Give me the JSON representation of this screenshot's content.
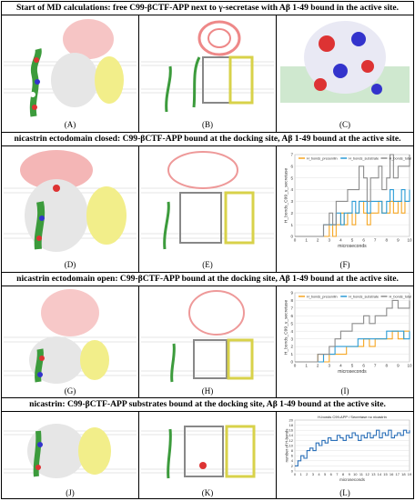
{
  "rows": [
    {
      "title": "Start of MD calculations: free C99-βCTF-APP next to γ-secretase with Aβ 1-49 bound in the active site.",
      "labels": [
        "(A)",
        "(B)",
        "(C)"
      ]
    },
    {
      "title": "nicastrin ectodomain closed: C99-βCTF-APP bound at the docking site, Aβ 1-49 bound at the active site.",
      "labels": [
        "(D)",
        "(E)",
        "(F)"
      ]
    },
    {
      "title": "nicastrin ectodomain open: C99-βCTF-APP bound at the docking site, Aβ 1-49 bound at the active site.",
      "labels": [
        "(G)",
        "(H)",
        "(I)"
      ]
    },
    {
      "title": "nicastrin: C99-βCTF-APP substrates bound at the docking site, Aβ 1-49 bound at the active site.",
      "labels": [
        "(J)",
        "(K)",
        "(L)"
      ]
    }
  ],
  "colors": {
    "presenilin": "#f5a623",
    "substrate": "#2a9bd6",
    "total": "#8c8c8c",
    "nicastrin": "#f4b6b6",
    "pen2": "#f2ee8a"
  },
  "chart_data": [
    {
      "type": "line",
      "panel": "F",
      "ylabel": "H_bonds_C99_γ_secretase",
      "xlabel": "microseconds",
      "xlim": [
        0,
        10
      ],
      "ylim": [
        0,
        7
      ],
      "xticks": [
        "0",
        "1",
        "2",
        "3",
        "4",
        "5",
        "6",
        "7",
        "8",
        "9",
        "10"
      ],
      "yticks": [
        "0",
        "1",
        "2",
        "3",
        "4",
        "5",
        "6",
        "7"
      ],
      "series": [
        {
          "name": "H_bonds_presenilin",
          "color": "#f5a623",
          "x": [
            0,
            0.5,
            1,
            1.5,
            2,
            2.5,
            3,
            3.3,
            3.6,
            4,
            4.3,
            4.6,
            5,
            5.3,
            5.6,
            6,
            6.3,
            6.6,
            7,
            7.3,
            7.6,
            8,
            8.3,
            8.6,
            9,
            9.3,
            9.6,
            10
          ],
          "y": [
            0,
            0,
            0,
            0,
            0,
            0,
            1,
            0,
            1,
            2,
            1,
            2,
            1,
            2,
            3,
            2,
            1,
            2,
            2,
            3,
            2,
            2,
            3,
            2,
            3,
            2,
            3,
            3
          ]
        },
        {
          "name": "H_bonds_substrate",
          "color": "#2a9bd6",
          "x": [
            0,
            0.5,
            1,
            1.5,
            2,
            2.5,
            3,
            3.3,
            3.6,
            4,
            4.3,
            4.6,
            5,
            5.3,
            5.6,
            6,
            6.3,
            6.6,
            7,
            7.3,
            7.6,
            8,
            8.3,
            8.6,
            9,
            9.3,
            9.6,
            10
          ],
          "y": [
            0,
            0,
            0,
            0,
            0,
            1,
            1,
            1,
            2,
            1,
            2,
            2,
            3,
            2,
            3,
            3,
            2,
            3,
            3,
            3,
            2,
            3,
            4,
            3,
            3,
            4,
            3,
            4
          ]
        },
        {
          "name": "H_bonds_total",
          "color": "#8c8c8c",
          "x": [
            0,
            0.5,
            1,
            1.5,
            2,
            2.5,
            3,
            3.3,
            3.6,
            4,
            4.3,
            4.6,
            5,
            5.3,
            5.6,
            6,
            6.3,
            6.6,
            7,
            7.3,
            7.6,
            8,
            8.3,
            8.6,
            9,
            9.3,
            9.6,
            10
          ],
          "y": [
            0,
            0,
            0,
            0,
            0,
            1,
            2,
            1,
            3,
            3,
            3,
            4,
            4,
            4,
            6,
            5,
            3,
            5,
            5,
            6,
            4,
            5,
            7,
            5,
            6,
            6,
            6,
            7
          ]
        }
      ]
    },
    {
      "type": "line",
      "panel": "I",
      "ylabel": "H_bonds_C99_γ_secretase",
      "xlabel": "microseconds",
      "xlim": [
        0,
        10
      ],
      "ylim": [
        0,
        9
      ],
      "xticks": [
        "0",
        "1",
        "2",
        "3",
        "4",
        "5",
        "6",
        "7",
        "8",
        "9",
        "10"
      ],
      "yticks": [
        "0",
        "1",
        "2",
        "3",
        "4",
        "5",
        "6",
        "7",
        "8",
        "9"
      ],
      "series": [
        {
          "name": "H_bonds_presenilin",
          "color": "#f5a623",
          "x": [
            0,
            0.5,
            1,
            1.5,
            2,
            2.5,
            3,
            3.5,
            4,
            4.5,
            5,
            5.5,
            6,
            6.5,
            7,
            7.5,
            8,
            8.5,
            9,
            9.5,
            10
          ],
          "y": [
            0,
            0,
            0,
            0,
            1,
            0,
            1,
            1,
            1,
            2,
            2,
            2,
            3,
            2,
            3,
            3,
            3,
            4,
            3,
            4,
            4
          ]
        },
        {
          "name": "H_bonds_substrate",
          "color": "#2a9bd6",
          "x": [
            0,
            0.5,
            1,
            1.5,
            2,
            2.5,
            3,
            3.5,
            4,
            4.5,
            5,
            5.5,
            6,
            6.5,
            7,
            7.5,
            8,
            8.5,
            9,
            9.5,
            10
          ],
          "y": [
            0,
            0,
            0,
            0,
            0,
            1,
            1,
            2,
            2,
            2,
            2,
            3,
            3,
            3,
            3,
            3,
            4,
            4,
            4,
            3,
            4
          ]
        },
        {
          "name": "H_bonds_total",
          "color": "#8c8c8c",
          "x": [
            0,
            0.5,
            1,
            1.5,
            2,
            2.5,
            3,
            3.5,
            4,
            4.5,
            5,
            5.5,
            6,
            6.5,
            7,
            7.5,
            8,
            8.5,
            9,
            9.5,
            10
          ],
          "y": [
            0,
            0,
            0,
            0,
            1,
            1,
            2,
            3,
            4,
            4,
            5,
            5,
            6,
            5,
            6,
            6,
            7,
            8,
            7,
            7,
            8
          ]
        }
      ]
    },
    {
      "type": "line",
      "panel": "L",
      "title": "H-bonds C99-APP / Secretase no nicastrin",
      "ylabel": "number of H-bonds",
      "xlabel": "microseconds",
      "xlim": [
        0,
        19
      ],
      "ylim": [
        0,
        20
      ],
      "xticks": [
        "0",
        "1",
        "2",
        "3",
        "4",
        "5",
        "6",
        "7",
        "8",
        "9",
        "10",
        "11",
        "12",
        "13",
        "14",
        "15",
        "16",
        "17",
        "18",
        "19"
      ],
      "yticks": [
        "0",
        "2",
        "4",
        "6",
        "8",
        "10",
        "12",
        "14",
        "16",
        "18",
        "20"
      ],
      "series": [
        {
          "name": "",
          "color": "#2a6fb8",
          "x": [
            0,
            0.5,
            1,
            1.5,
            2,
            2.5,
            3,
            3.5,
            4,
            4.5,
            5,
            5.5,
            6,
            6.5,
            7,
            7.5,
            8,
            8.5,
            9,
            9.5,
            10,
            10.5,
            11,
            11.5,
            12,
            12.5,
            13,
            13.5,
            14,
            14.5,
            15,
            15.5,
            16,
            16.5,
            17,
            17.5,
            18,
            18.5,
            19
          ],
          "y": [
            2,
            4,
            6,
            5,
            8,
            9,
            8,
            11,
            10,
            12,
            11,
            13,
            12,
            12,
            14,
            13,
            12,
            14,
            13,
            15,
            14,
            12,
            14,
            13,
            15,
            13,
            14,
            16,
            13,
            15,
            14,
            16,
            13,
            14,
            15,
            14,
            16,
            15,
            16
          ]
        }
      ]
    }
  ]
}
